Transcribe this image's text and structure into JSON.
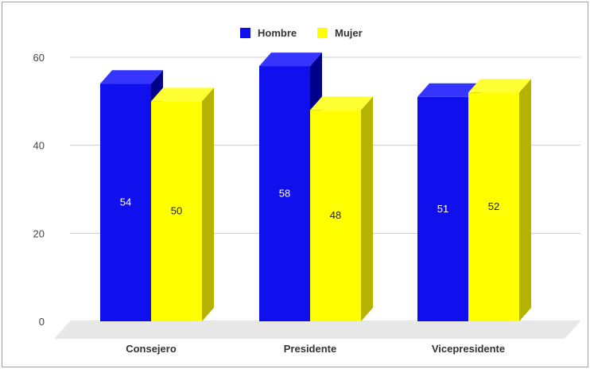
{
  "chart_data": {
    "type": "bar",
    "style": "3d",
    "title": "",
    "xlabel": "",
    "ylabel": "",
    "ylim": [
      0,
      60
    ],
    "yticks": [
      0,
      20,
      40,
      60
    ],
    "grid": true,
    "legend_position": "top-center",
    "categories": [
      "Consejero",
      "Presidente",
      "Vicepresidente"
    ],
    "series": [
      {
        "name": "Hombre",
        "color": "#1010ee",
        "side_color": "#00008b",
        "top_color": "#3535ff",
        "label_color": "#ffffff",
        "values": [
          54,
          58,
          51
        ],
        "data_labels": [
          "54",
          "58",
          "51"
        ]
      },
      {
        "name": "Mujer",
        "color": "#ffff00",
        "side_color": "#b3b300",
        "top_color": "#ffff33",
        "label_color": "#222222",
        "values": [
          50,
          48,
          52
        ],
        "data_labels": [
          "50",
          "48",
          "52"
        ]
      }
    ]
  }
}
